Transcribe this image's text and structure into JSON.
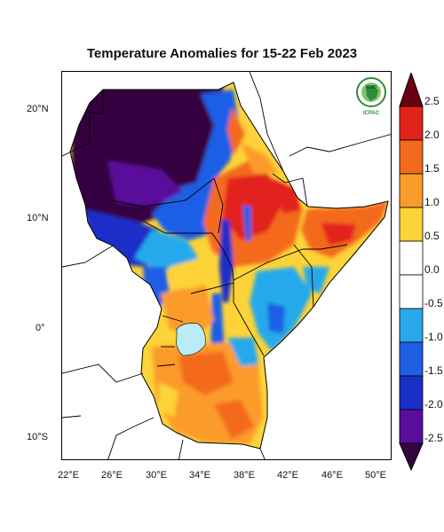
{
  "title": "Temperature Anomalies for 15-22 Feb 2023",
  "logo": {
    "name": "IGAD ICPAC logo",
    "text_top": "IGAD",
    "text_bottom": "ICPAC"
  },
  "lat_ticks": [
    "20°N",
    "10°N",
    "0°",
    "10°S"
  ],
  "lon_ticks": [
    "22°E",
    "26°E",
    "30°E",
    "34°E",
    "38°E",
    "42°E",
    "46°E",
    "50°E"
  ],
  "colorbar": {
    "labels": [
      "2.5",
      "2.0",
      "1.5",
      "1.0",
      "0.5",
      "0.0",
      "-0.5",
      "-1.0",
      "-1.5",
      "-2.0",
      "-2.5"
    ],
    "colors": [
      "#a50014",
      "#e2231a",
      "#f46a1c",
      "#fb9b2a",
      "#fcd338",
      "#ffffff",
      "#28a9ec",
      "#1e5fe6",
      "#1a2ec8",
      "#5a0c9a",
      "#35053f"
    ]
  }
}
